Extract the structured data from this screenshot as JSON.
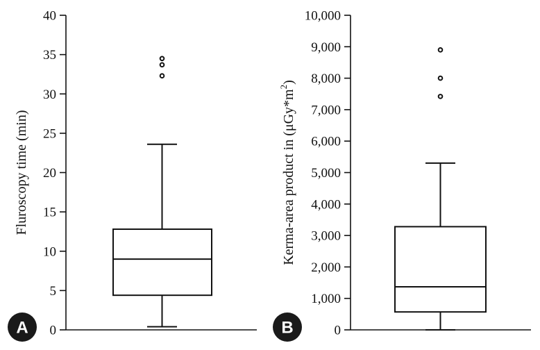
{
  "chart_data": [
    {
      "type": "box",
      "panel_label": "A",
      "ylabel": "Fluroscopy time (min)",
      "ylim": [
        0,
        40
      ],
      "yticks": [
        0,
        5,
        10,
        15,
        20,
        25,
        30,
        35,
        40
      ],
      "ytick_labels": [
        "0",
        "5",
        "10",
        "15",
        "20",
        "25",
        "30",
        "35",
        "40"
      ],
      "box": {
        "whisker_low": 0.4,
        "q1": 4.4,
        "median": 9.0,
        "q3": 12.8,
        "whisker_high": 23.6
      },
      "outliers": [
        32.3,
        33.7,
        34.5
      ]
    },
    {
      "type": "box",
      "panel_label": "B",
      "ylabel_main": "Kerma-area product in (μGy*m",
      "ylabel_sup": "2",
      "ylabel_end": ")",
      "ylim": [
        0,
        10000
      ],
      "yticks": [
        0,
        1000,
        2000,
        3000,
        4000,
        5000,
        6000,
        7000,
        8000,
        9000,
        10000
      ],
      "ytick_labels": [
        "0",
        "1,000",
        "2,000",
        "3,000",
        "4,000",
        "5,000",
        "6,000",
        "7,000",
        "8,000",
        "9,000",
        "10,000"
      ],
      "box": {
        "whisker_low": 0,
        "q1": 570,
        "median": 1370,
        "q3": 3280,
        "whisker_high": 5300
      },
      "outliers": [
        7420,
        8000,
        8900
      ]
    }
  ]
}
